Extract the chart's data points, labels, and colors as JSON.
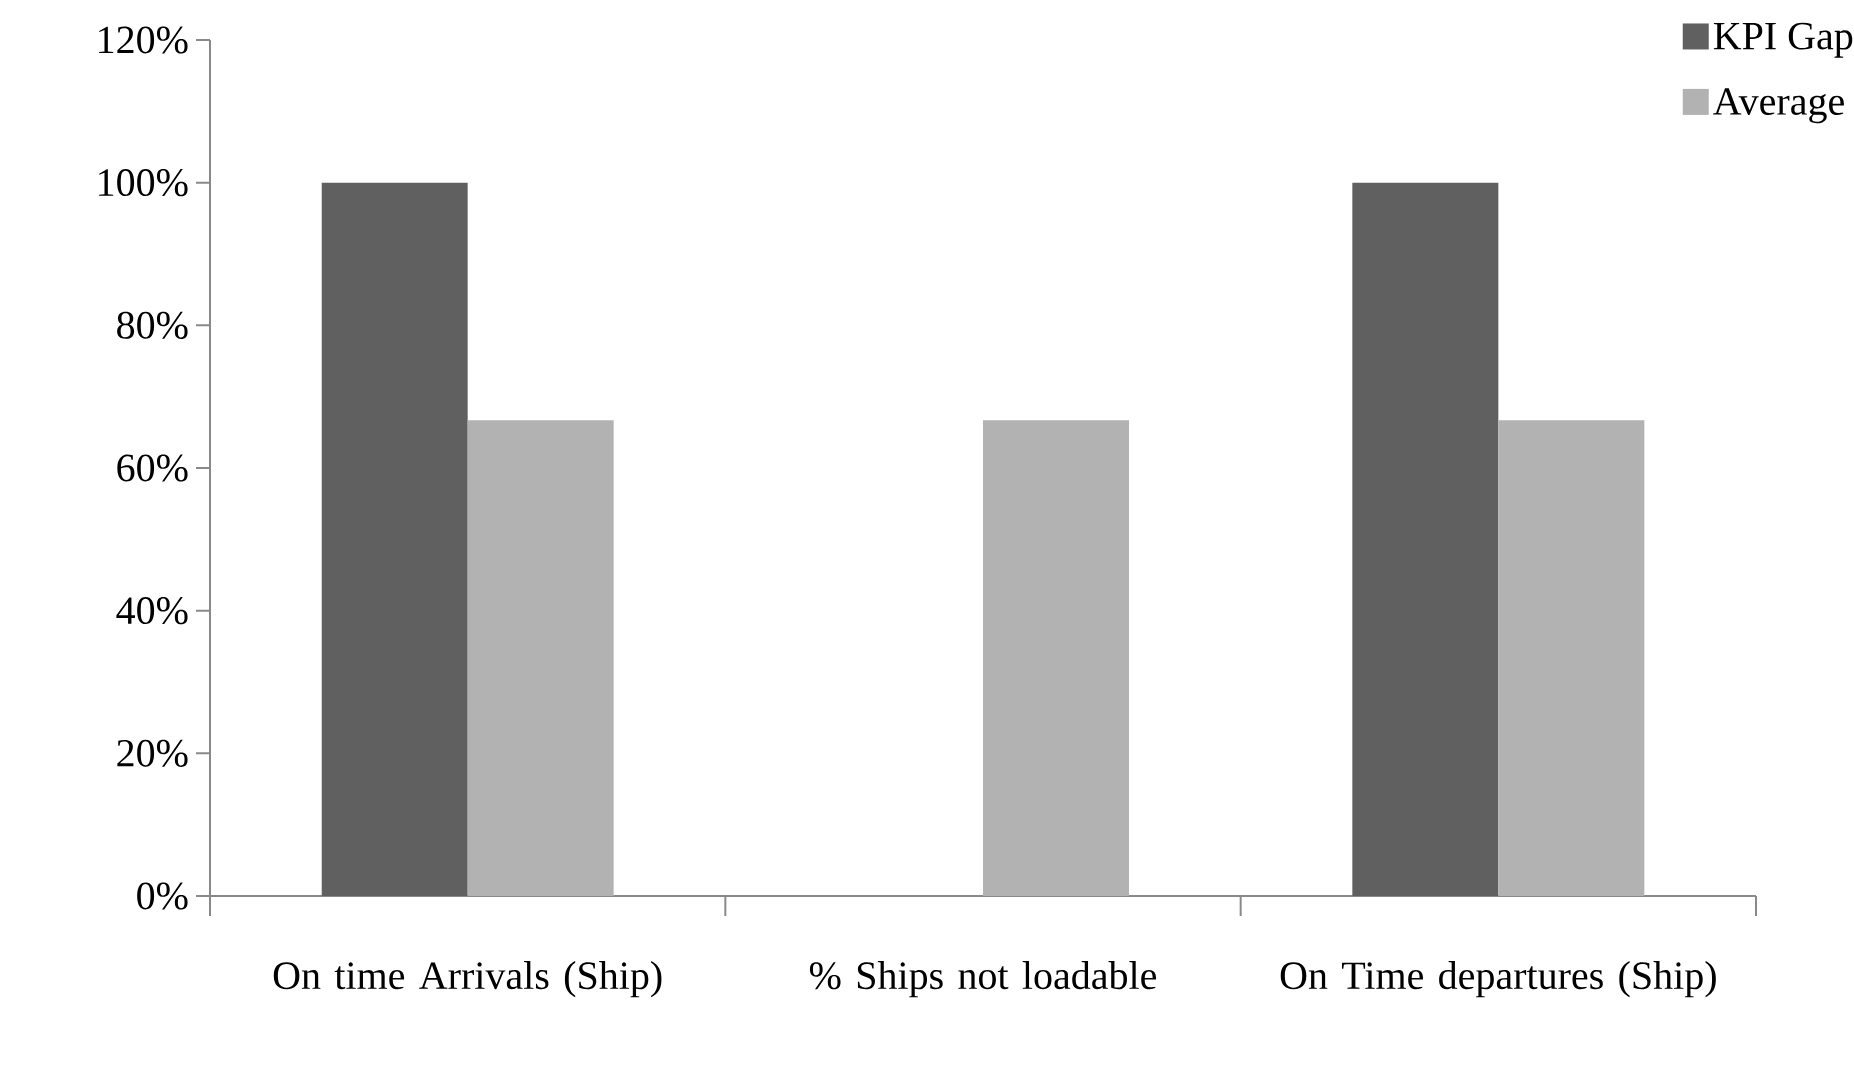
{
  "chart_data": {
    "type": "bar",
    "categories": [
      "On time Arrivals (Ship)",
      "% Ships not loadable",
      "On Time departures (Ship)"
    ],
    "series": [
      {
        "name": "KPI Gap",
        "color": "#606060",
        "values": [
          100,
          0,
          100
        ]
      },
      {
        "name": "Average",
        "color": "#b2b2b2",
        "values": [
          66.7,
          66.7,
          66.7
        ]
      }
    ],
    "ylim": [
      0,
      120
    ],
    "yticks": [
      {
        "value": 0,
        "label": "0%"
      },
      {
        "value": 20,
        "label": "20%"
      },
      {
        "value": 40,
        "label": "40%"
      },
      {
        "value": 60,
        "label": "60%"
      },
      {
        "value": 80,
        "label": "80%"
      },
      {
        "value": 100,
        "label": "100%"
      },
      {
        "value": 120,
        "label": "120%"
      }
    ],
    "grid": false,
    "legend": "top right"
  }
}
